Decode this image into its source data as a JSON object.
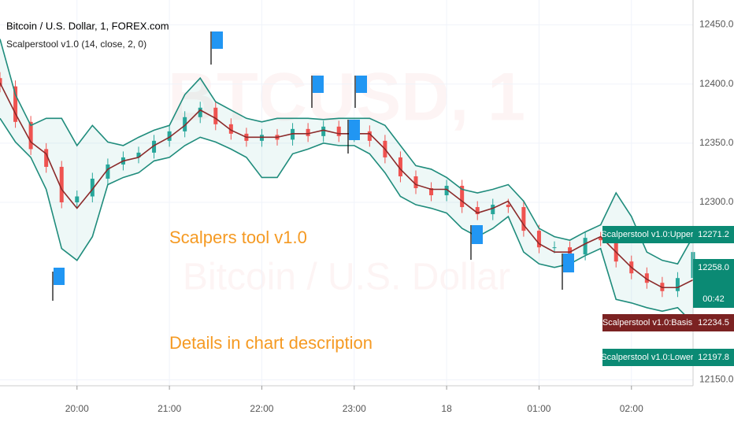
{
  "chart_data": {
    "type": "candlestick",
    "title": "Bitcoin / U.S. Dollar, 1, FOREX.com",
    "subtitle": "Scalperstool v1.0 (14, close, 2, 0)",
    "watermark": "BTCUSD, 1",
    "watermark_sub": "Bitcoin / U.S. Dollar",
    "annotations": [
      "Scalpers tool v1.0",
      "Details in chart description"
    ],
    "x": [
      10,
      20,
      30,
      40,
      50,
      60,
      70,
      80,
      90,
      100,
      110,
      120,
      130,
      140,
      150,
      160,
      170,
      180,
      190,
      200,
      210,
      220,
      230,
      240,
      250,
      260,
      270,
      280,
      290,
      300,
      310,
      320,
      330,
      340,
      350,
      360,
      370,
      380,
      390,
      400,
      410,
      420,
      430,
      440,
      450,
      460
    ],
    "xlim": [
      10,
      460
    ],
    "xticks": [
      {
        "value": 60,
        "label": "20:00"
      },
      {
        "value": 120,
        "label": "21:00"
      },
      {
        "value": 180,
        "label": "22:00"
      },
      {
        "value": 240,
        "label": "23:00"
      },
      {
        "value": 300,
        "label": "18"
      },
      {
        "value": 360,
        "label": "01:00"
      },
      {
        "value": 420,
        "label": "02:00"
      }
    ],
    "ylim": [
      12145,
      12471
    ],
    "yticks": [
      {
        "value": 12450,
        "label": "12450.0"
      },
      {
        "value": 12400,
        "label": "12400.0"
      },
      {
        "value": 12350,
        "label": "12350.0"
      },
      {
        "value": 12300,
        "label": "12300.0"
      },
      {
        "value": 12150,
        "label": "12150.0"
      }
    ],
    "grid": true,
    "candles": {
      "up_color": "#26a69a",
      "down_color": "#ef5350",
      "open": [
        12405,
        12398,
        12368,
        12345,
        12330,
        12300,
        12305,
        12320,
        12332,
        12338,
        12342,
        12352,
        12360,
        12372,
        12380,
        12366,
        12358,
        12352,
        12357,
        12353,
        12362,
        12356,
        12364,
        12356,
        12360,
        12352,
        12338,
        12322,
        12312,
        12306,
        12314,
        12296,
        12290,
        12298,
        12296,
        12276,
        12262,
        12262,
        12256,
        12270,
        12268,
        12250,
        12240,
        12232,
        12225,
        12236
      ],
      "high": [
        12410,
        12403,
        12373,
        12350,
        12335,
        12310,
        12325,
        12337,
        12343,
        12347,
        12357,
        12365,
        12377,
        12385,
        12385,
        12371,
        12363,
        12362,
        12362,
        12367,
        12367,
        12369,
        12369,
        12365,
        12365,
        12357,
        12343,
        12327,
        12317,
        12319,
        12319,
        12301,
        12303,
        12303,
        12301,
        12281,
        12267,
        12267,
        12275,
        12275,
        12273,
        12255,
        12245,
        12237,
        12241,
        12263
      ],
      "low": [
        12393,
        12363,
        12340,
        12325,
        12295,
        12295,
        12300,
        12315,
        12327,
        12333,
        12337,
        12347,
        12355,
        12367,
        12361,
        12353,
        12347,
        12347,
        12348,
        12348,
        12351,
        12351,
        12351,
        12351,
        12347,
        12333,
        12317,
        12307,
        12301,
        12301,
        12291,
        12285,
        12285,
        12291,
        12271,
        12257,
        12257,
        12251,
        12251,
        12263,
        12245,
        12235,
        12227,
        12220,
        12220,
        12231
      ],
      "close": [
        12398,
        12368,
        12345,
        12330,
        12300,
        12305,
        12320,
        12332,
        12338,
        12342,
        12352,
        12360,
        12372,
        12380,
        12366,
        12358,
        12352,
        12357,
        12353,
        12362,
        12356,
        12364,
        12356,
        12360,
        12352,
        12338,
        12322,
        12312,
        12306,
        12314,
        12296,
        12290,
        12298,
        12296,
        12276,
        12262,
        12262,
        12256,
        12270,
        12268,
        12250,
        12240,
        12232,
        12225,
        12236,
        12258
      ]
    },
    "series": [
      {
        "name": "Scalperstool v1.0:Upper",
        "color": "#1f8c7c",
        "values": [
          12438,
          12391,
          12365,
          12371,
          12371,
          12348,
          12365,
          12351,
          12348,
          12355,
          12361,
          12365,
          12391,
          12405,
          12385,
          12378,
          12371,
          12368,
          12371,
          12371,
          12371,
          12370,
          12371,
          12371,
          12371,
          12365,
          12348,
          12331,
          12328,
          12321,
          12311,
          12308,
          12311,
          12315,
          12301,
          12278,
          12271,
          12268,
          12275,
          12281,
          12308,
          12288,
          12258,
          12251,
          12248,
          12271.2
        ]
      },
      {
        "name": "Scalperstool v1.0:Basis",
        "color": "#8b2a2a",
        "values": [
          12401,
          12375,
          12351,
          12341,
          12311,
          12295,
          12311,
          12328,
          12335,
          12338,
          12348,
          12355,
          12365,
          12378,
          12371,
          12361,
          12355,
          12355,
          12355,
          12358,
          12358,
          12361,
          12358,
          12358,
          12358,
          12345,
          12328,
          12315,
          12311,
          12311,
          12301,
          12291,
          12295,
          12301,
          12281,
          12265,
          12258,
          12258,
          12265,
          12271,
          12258,
          12245,
          12235,
          12228,
          12228,
          12234.5
        ]
      },
      {
        "name": "Scalperstool v1.0:Lower",
        "color": "#1f8c7c",
        "values": [
          12371,
          12351,
          12338,
          12311,
          12261,
          12251,
          12271,
          12315,
          12321,
          12325,
          12335,
          12338,
          12348,
          12355,
          12351,
          12345,
          12338,
          12321,
          12321,
          12341,
          12345,
          12350,
          12348,
          12348,
          12341,
          12325,
          12305,
          12298,
          12295,
          12291,
          12278,
          12271,
          12278,
          12288,
          12258,
          12248,
          12245,
          12248,
          12255,
          12261,
          12218,
          12215,
          12211,
          12208,
          12211,
          12197.8
        ]
      }
    ],
    "band_fill": "rgba(38,166,154,0.08)",
    "last_price": {
      "value": 12258,
      "label": "12258.0"
    },
    "countdown": "00:42"
  }
}
